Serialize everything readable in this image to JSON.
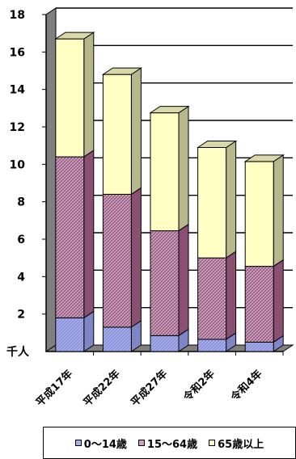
{
  "chart_data": {
    "type": "bar",
    "stacked": true,
    "title": "",
    "xlabel": "",
    "ylabel": "",
    "unit_label": "千人",
    "ylim": [
      0,
      18
    ],
    "yticks": [
      "2",
      "4",
      "6",
      "8",
      "10",
      "12",
      "14",
      "16",
      "18"
    ],
    "categories": [
      "平成17年",
      "平成22年",
      "平成27年",
      "令和2年",
      "令和4年"
    ],
    "series": [
      {
        "name": "0～14歳",
        "values": [
          1.8,
          1.3,
          0.85,
          0.65,
          0.5
        ],
        "color": "#aab0e8",
        "side_color": "#7f86c6"
      },
      {
        "name": "15～64歳",
        "values": [
          8.6,
          7.1,
          5.6,
          4.35,
          4.05
        ],
        "color": "#c9a2bc",
        "side_color": "#8a4f73"
      },
      {
        "name": "65歳以上",
        "values": [
          6.3,
          6.4,
          6.3,
          5.9,
          5.6
        ],
        "color": "#ffffc4",
        "side_color": "#b7b78c"
      }
    ],
    "grid": true,
    "legend_position": "bottom"
  }
}
